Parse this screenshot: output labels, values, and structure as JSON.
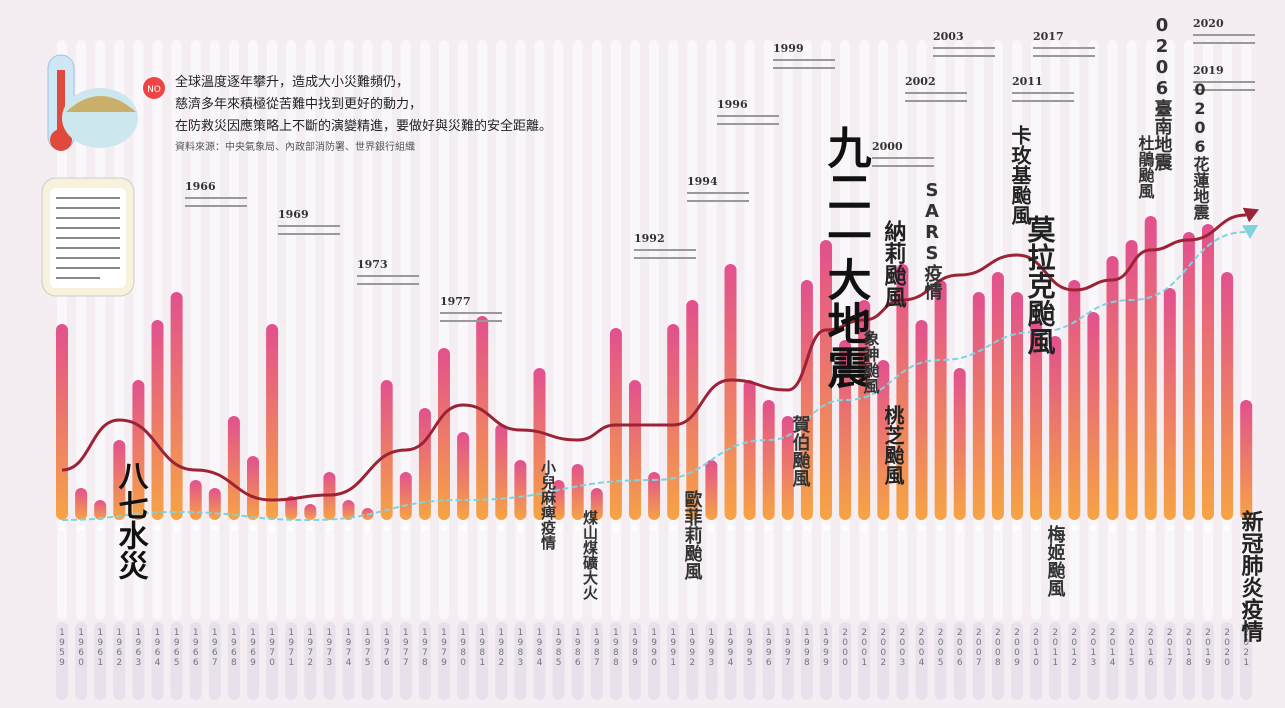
{
  "chart_data": {
    "type": "bar",
    "header": [
      "全球溫度逐年攀升，造成大小災難頻仍，",
      "慈濟多年來積極從苦難中找到更好的動力，",
      "在防救災因應策略上不斷的演變精進，要做好與災難的安全距離。"
    ],
    "source": "資料來源：中央氣象局、內政部消防署、世界銀行組織",
    "categories": [
      "1959",
      "1960",
      "1961",
      "1962",
      "1963",
      "1964",
      "1965",
      "1966",
      "1967",
      "1968",
      "1969",
      "1970",
      "1971",
      "1972",
      "1973",
      "1974",
      "1975",
      "1976",
      "1977",
      "1978",
      "1979",
      "1980",
      "1981",
      "1982",
      "1983",
      "1984",
      "1985",
      "1986",
      "1987",
      "1988",
      "1989",
      "1990",
      "1991",
      "1992",
      "1993",
      "1994",
      "1995",
      "1996",
      "1997",
      "1998",
      "1999",
      "2000",
      "2001",
      "2002",
      "2003",
      "2004",
      "2005",
      "2006",
      "2007",
      "2008",
      "2009",
      "2010",
      "2011",
      "2012",
      "2013",
      "2014",
      "2015",
      "2016",
      "2017",
      "2018",
      "2019",
      "2020",
      "2021"
    ],
    "values": [
      49,
      8,
      5,
      20,
      35,
      50,
      57,
      10,
      8,
      26,
      16,
      49,
      6,
      4,
      12,
      5,
      3,
      35,
      12,
      28,
      43,
      22,
      51,
      24,
      15,
      38,
      10,
      14,
      8,
      48,
      35,
      12,
      49,
      55,
      15,
      64,
      35,
      30,
      26,
      60,
      70,
      45,
      55,
      40,
      64,
      50,
      60,
      38,
      57,
      62,
      57,
      50,
      46,
      60,
      52,
      66,
      70,
      76,
      58,
      72,
      74,
      62,
      30
    ],
    "colors": [
      "#e2508e",
      "#f6a445"
    ],
    "ylim": [
      0,
      100
    ],
    "lines": [
      {
        "type": "line",
        "color": "#9b2335",
        "x": [
          1959,
          1962,
          1966,
          1970,
          1973,
          1977,
          1980,
          1983,
          1986,
          1988,
          1991,
          1994,
          1997,
          1999,
          2001,
          2003,
          2006,
          2009,
          2012,
          2014,
          2016,
          2018,
          2021
        ],
        "values": [
          12.5,
          25,
          12.5,
          5,
          6.25,
          17.5,
          28.75,
          22.5,
          20,
          23.75,
          23.75,
          35,
          32.5,
          47.5,
          50,
          55,
          61.25,
          66.25,
          57.5,
          60,
          67.5,
          70,
          76.25
        ]
      },
      {
        "type": "line",
        "color": "#7fd3e0",
        "x": [
          1959,
          1965,
          1972,
          1980,
          1990,
          1996,
          2000,
          2005,
          2010,
          2015,
          2021
        ],
        "values": [
          0,
          2,
          0,
          5,
          10,
          20,
          30,
          40,
          47,
          55,
          72
        ]
      }
    ],
    "annotation_years": [
      "1966",
      "1969",
      "1973",
      "1977",
      "1992",
      "1994",
      "1996",
      "1999",
      "2000",
      "2002",
      "2003",
      "2011",
      "2017",
      "2019",
      "2020"
    ],
    "event_labels": [
      "八七水災",
      "九二一大地震",
      "莫拉克颱風",
      "卡玫基颱風",
      "納莉颱風",
      "桃芝颱風",
      "SARS疫情",
      "新冠肺炎疫情",
      "杜鵑颱風",
      "0206臺南地震",
      "0206花蓮地震",
      "賀伯颱風",
      "象神颱風",
      "梅姬颱風",
      "歐菲莉颱風",
      "煤山煤礦大火",
      "小兒麻痺疫情"
    ]
  }
}
